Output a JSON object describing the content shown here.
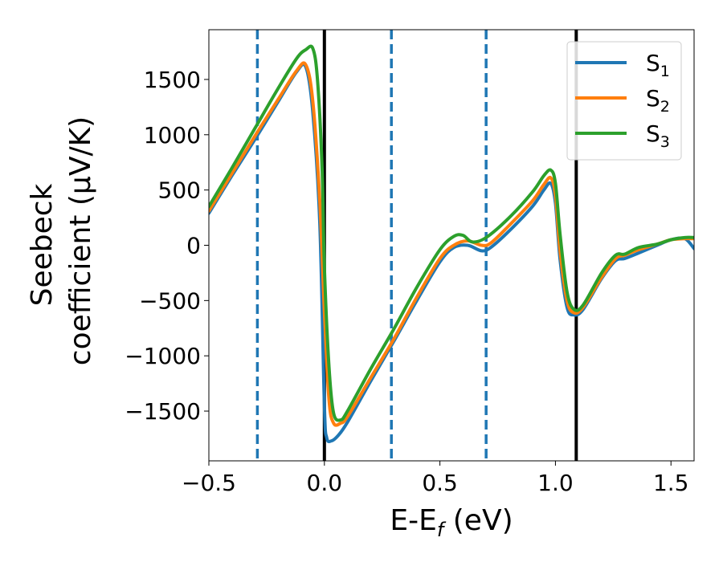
{
  "chart_data": {
    "type": "line",
    "title": "",
    "xlabel": {
      "main": "E-E",
      "sub": "f",
      "suffix": " (eV)"
    },
    "ylabel": {
      "line1": "Seebeck",
      "line2": "coefficient  (μV/K)"
    },
    "xlim": [
      -0.5,
      1.6
    ],
    "ylim": [
      -1950,
      1950
    ],
    "xticks": [
      -0.5,
      0.0,
      0.5,
      1.0,
      1.5
    ],
    "xtick_labels": [
      "−0.5",
      "0.0",
      "0.5",
      "1.0",
      "1.5"
    ],
    "yticks": [
      -1500,
      -1000,
      -500,
      0,
      500,
      1000,
      1500
    ],
    "ytick_labels": [
      "−1500",
      "−1000",
      "−500",
      "0",
      "500",
      "1000",
      "1500"
    ],
    "grid": false,
    "legend_position": "top-right",
    "vlines": [
      {
        "x": -0.29,
        "style": "dashed",
        "color": "#1f77b4"
      },
      {
        "x": 0.0,
        "style": "solid",
        "color": "#000000"
      },
      {
        "x": 0.29,
        "style": "dashed",
        "color": "#1f77b4"
      },
      {
        "x": 0.7,
        "style": "dashed",
        "color": "#1f77b4"
      },
      {
        "x": 1.09,
        "style": "solid",
        "color": "#000000"
      }
    ],
    "series": [
      {
        "name": "S",
        "sub": "1",
        "color": "#1f77b4",
        "x": [
          -0.5,
          -0.4,
          -0.3,
          -0.2,
          -0.12,
          -0.08,
          -0.05,
          -0.02,
          0.0,
          0.01,
          0.03,
          0.06,
          0.1,
          0.2,
          0.3,
          0.4,
          0.5,
          0.56,
          0.62,
          0.68,
          0.72,
          0.8,
          0.9,
          0.95,
          0.98,
          1.0,
          1.02,
          1.05,
          1.08,
          1.12,
          1.2,
          1.26,
          1.3,
          1.36,
          1.44,
          1.5,
          1.56,
          1.6
        ],
        "y": [
          290,
          630,
          960,
          1300,
          1570,
          1610,
          1200,
          200,
          -1450,
          -1740,
          -1770,
          -1720,
          -1600,
          -1230,
          -870,
          -500,
          -150,
          -20,
          0,
          -50,
          -20,
          130,
          350,
          500,
          560,
          380,
          -130,
          -560,
          -630,
          -580,
          -300,
          -140,
          -120,
          -70,
          0,
          50,
          60,
          -30
        ]
      },
      {
        "name": "S",
        "sub": "2",
        "color": "#ff7f0e",
        "x": [
          -0.5,
          -0.4,
          -0.3,
          -0.2,
          -0.12,
          -0.08,
          -0.05,
          -0.02,
          0.0,
          0.02,
          0.04,
          0.07,
          0.1,
          0.2,
          0.3,
          0.4,
          0.5,
          0.56,
          0.62,
          0.68,
          0.72,
          0.8,
          0.9,
          0.95,
          0.98,
          1.0,
          1.02,
          1.05,
          1.08,
          1.12,
          1.2,
          1.26,
          1.3,
          1.36,
          1.44,
          1.5,
          1.56,
          1.6
        ],
        "y": [
          310,
          650,
          990,
          1320,
          1580,
          1630,
          1300,
          400,
          -600,
          -1400,
          -1610,
          -1610,
          -1550,
          -1200,
          -850,
          -470,
          -120,
          0,
          40,
          0,
          20,
          180,
          400,
          550,
          610,
          450,
          -50,
          -500,
          -610,
          -560,
          -290,
          -120,
          -90,
          -40,
          10,
          50,
          60,
          60
        ]
      },
      {
        "name": "S",
        "sub": "3",
        "color": "#2ca02c",
        "x": [
          -0.5,
          -0.4,
          -0.3,
          -0.2,
          -0.12,
          -0.08,
          -0.05,
          -0.03,
          -0.01,
          0.0,
          0.02,
          0.04,
          0.07,
          0.1,
          0.2,
          0.3,
          0.4,
          0.5,
          0.56,
          0.6,
          0.64,
          0.7,
          0.8,
          0.9,
          0.95,
          0.98,
          1.0,
          1.02,
          1.05,
          1.08,
          1.12,
          1.2,
          1.26,
          1.3,
          1.36,
          1.44,
          1.5,
          1.56,
          1.6
        ],
        "y": [
          350,
          700,
          1060,
          1420,
          1690,
          1770,
          1780,
          1500,
          700,
          -200,
          -1100,
          -1520,
          -1580,
          -1500,
          -1120,
          -760,
          -380,
          -40,
          80,
          90,
          30,
          70,
          250,
          480,
          630,
          680,
          560,
          100,
          -420,
          -580,
          -540,
          -250,
          -90,
          -80,
          -20,
          10,
          50,
          70,
          70
        ]
      }
    ]
  }
}
